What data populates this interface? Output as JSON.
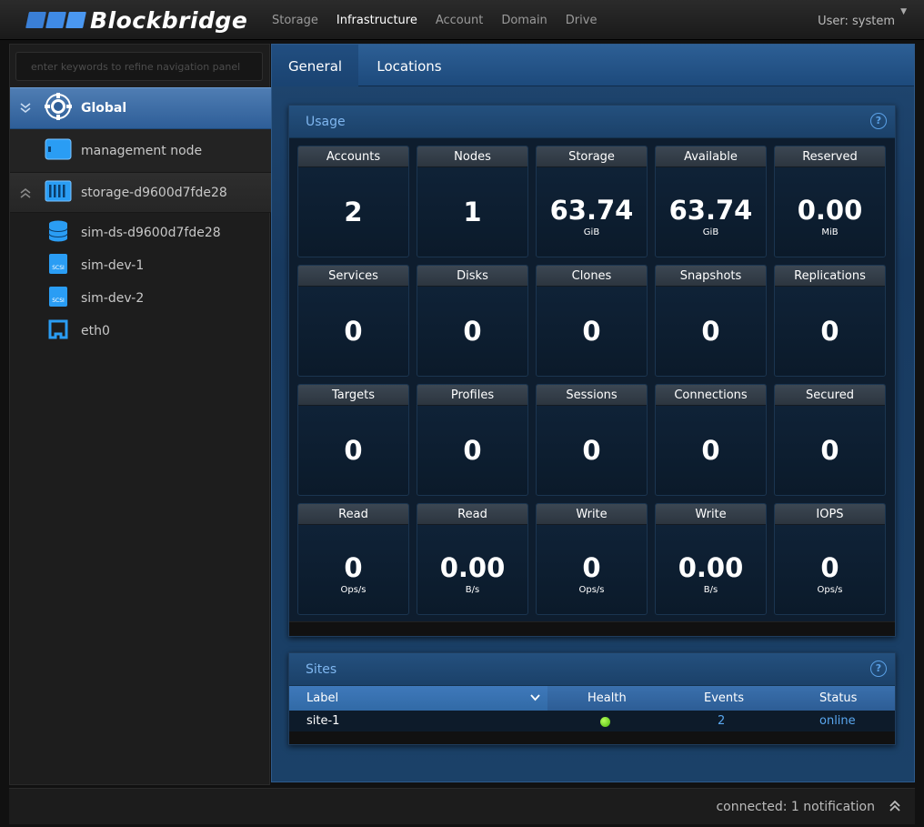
{
  "app": {
    "logo_text": "Blockbridge",
    "nav": [
      "Storage",
      "Infrastructure",
      "Account",
      "Domain",
      "Drive"
    ],
    "active_nav": "Infrastructure",
    "user": "User: system"
  },
  "sidebar": {
    "search_placeholder": "enter keywords to refine navigation panel",
    "items": [
      {
        "label": "Global",
        "icon": "globe-icon",
        "selected": true
      },
      {
        "label": "management node",
        "icon": "server-node-icon"
      },
      {
        "label": "storage-d9600d7fde28",
        "icon": "storage-array-icon"
      },
      {
        "label": "sim-ds-d9600d7fde28",
        "icon": "database-icon"
      },
      {
        "label": "sim-dev-1",
        "icon": "scsi-disk-icon",
        "icon_text": "SCSI"
      },
      {
        "label": "sim-dev-2",
        "icon": "scsi-disk-icon",
        "icon_text": "SCSI"
      },
      {
        "label": "eth0",
        "icon": "network-port-icon"
      }
    ]
  },
  "tabs": [
    "General",
    "Locations"
  ],
  "active_tab": "General",
  "usage": {
    "title": "Usage",
    "help": "?",
    "tiles": [
      {
        "label": "Accounts",
        "value": "2",
        "unit": ""
      },
      {
        "label": "Nodes",
        "value": "1",
        "unit": ""
      },
      {
        "label": "Storage",
        "value": "63.74",
        "unit": "GiB"
      },
      {
        "label": "Available",
        "value": "63.74",
        "unit": "GiB"
      },
      {
        "label": "Reserved",
        "value": "0.00",
        "unit": "MiB"
      },
      {
        "label": "Services",
        "value": "0",
        "unit": ""
      },
      {
        "label": "Disks",
        "value": "0",
        "unit": ""
      },
      {
        "label": "Clones",
        "value": "0",
        "unit": ""
      },
      {
        "label": "Snapshots",
        "value": "0",
        "unit": ""
      },
      {
        "label": "Replications",
        "value": "0",
        "unit": ""
      },
      {
        "label": "Targets",
        "value": "0",
        "unit": ""
      },
      {
        "label": "Profiles",
        "value": "0",
        "unit": ""
      },
      {
        "label": "Sessions",
        "value": "0",
        "unit": ""
      },
      {
        "label": "Connections",
        "value": "0",
        "unit": ""
      },
      {
        "label": "Secured",
        "value": "0",
        "unit": ""
      },
      {
        "label": "Read",
        "value": "0",
        "unit": "Ops/s"
      },
      {
        "label": "Read",
        "value": "0.00",
        "unit": "B/s"
      },
      {
        "label": "Write",
        "value": "0",
        "unit": "Ops/s"
      },
      {
        "label": "Write",
        "value": "0.00",
        "unit": "B/s"
      },
      {
        "label": "IOPS",
        "value": "0",
        "unit": "Ops/s"
      }
    ]
  },
  "sites": {
    "title": "Sites",
    "help": "?",
    "columns": [
      "Label",
      "Health",
      "Events",
      "Status"
    ],
    "rows": [
      {
        "label": "site-1",
        "health": "good",
        "events": "2",
        "status": "online"
      }
    ],
    "health_color": "#6ad11a"
  },
  "status_bar": {
    "text": "connected: 1 notification"
  }
}
